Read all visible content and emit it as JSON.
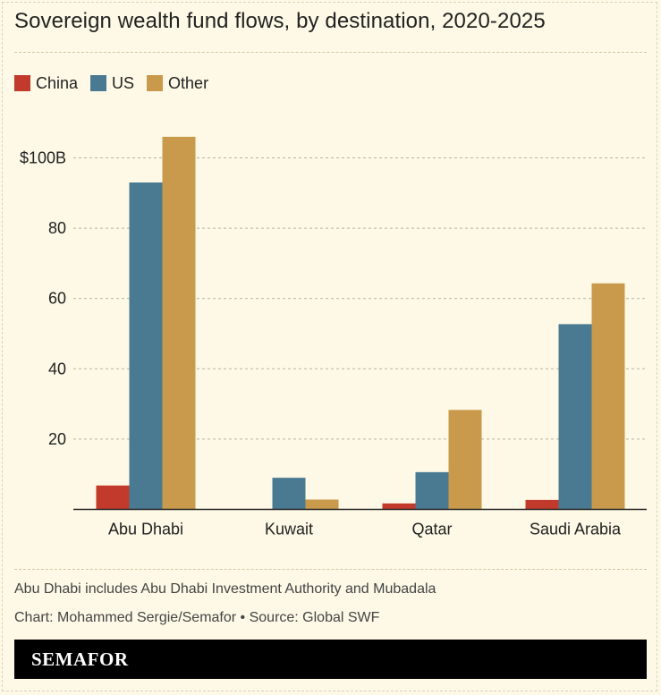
{
  "title": "Sovereign wealth fund flows, by destination, 2020-2025",
  "legend": [
    {
      "label": "China",
      "color": "#c23a2b"
    },
    {
      "label": "US",
      "color": "#4a7a92"
    },
    {
      "label": "Other",
      "color": "#c99a4c"
    }
  ],
  "notes": {
    "note": "Abu Dhabi includes Abu Dhabi Investment Authority and Mubadala",
    "credit": "Chart: Mohammed Sergie/Semafor • Source: Global SWF"
  },
  "brand": "SEMAFOR",
  "chart_data": {
    "type": "bar",
    "categories": [
      "Abu Dhabi",
      "Kuwait",
      "Qatar",
      "Saudi Arabia"
    ],
    "series": [
      {
        "name": "China",
        "color": "#c23a2b",
        "values": [
          6.8,
          0,
          1.7,
          2.7
        ]
      },
      {
        "name": "US",
        "color": "#4a7a92",
        "values": [
          93,
          9,
          10.6,
          52.7
        ]
      },
      {
        "name": "Other",
        "color": "#c99a4c",
        "values": [
          106,
          2.8,
          28.3,
          64.3
        ]
      }
    ],
    "yticks": [
      {
        "value": 20,
        "label": "20"
      },
      {
        "value": 40,
        "label": "40"
      },
      {
        "value": 60,
        "label": "60"
      },
      {
        "value": 80,
        "label": "80"
      },
      {
        "value": 100,
        "label": "$100B"
      }
    ],
    "ylim": [
      0,
      110
    ],
    "grid": true,
    "legend_position": "top-left"
  }
}
